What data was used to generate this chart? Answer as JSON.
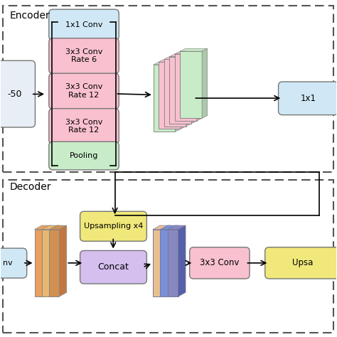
{
  "bg_color": "#ffffff",
  "encoder_label": "Encoder",
  "decoder_label": "Decoder",
  "aspp_colors": [
    "#d0e8f5",
    "#f9c0cf",
    "#f9c0cf",
    "#f9c0cf",
    "#c8ecc8"
  ],
  "aspp_texts": [
    "1x1 Conv",
    "3x3 Conv\nRate 6",
    "3x3 Conv\nRate 12",
    "3x3 Conv\nRate 12",
    "Pooling"
  ],
  "resnet_color": "#e8eef5",
  "conv1x1_color": "#d0e8f5",
  "upsampling_color": "#f0e87a",
  "concat_color": "#d4bfee",
  "conv3x3_color": "#f9c0cf",
  "upsa_color": "#f0e87a",
  "fm_colors_enc": [
    "#c8ecc8",
    "#f9c0cf",
    "#f9c0cf",
    "#f9c0cf",
    "#f9c0cf",
    "#c8ecc8"
  ],
  "fm_colors_dec_orange": [
    "#e8b870",
    "#d4994a"
  ],
  "fm_colors_dec_blue": [
    "#e8c8a0",
    "#7890d0",
    "#9090c0"
  ]
}
